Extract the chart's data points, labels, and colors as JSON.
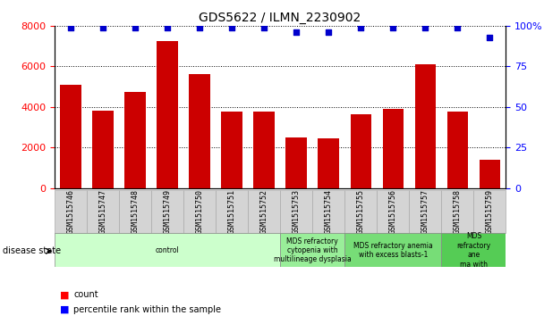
{
  "title": "GDS5622 / ILMN_2230902",
  "samples": [
    "GSM1515746",
    "GSM1515747",
    "GSM1515748",
    "GSM1515749",
    "GSM1515750",
    "GSM1515751",
    "GSM1515752",
    "GSM1515753",
    "GSM1515754",
    "GSM1515755",
    "GSM1515756",
    "GSM1515757",
    "GSM1515758",
    "GSM1515759"
  ],
  "counts": [
    5100,
    3800,
    4750,
    7250,
    5600,
    3750,
    3750,
    2500,
    2450,
    3650,
    3900,
    6100,
    3750,
    1400
  ],
  "percentile_ranks": [
    99,
    99,
    99,
    99,
    99,
    99,
    99,
    96,
    96,
    99,
    99,
    99,
    99,
    93
  ],
  "ylim_left": [
    0,
    8000
  ],
  "ylim_right": [
    0,
    100
  ],
  "yticks_left": [
    0,
    2000,
    4000,
    6000,
    8000
  ],
  "yticks_right": [
    0,
    25,
    50,
    75,
    100
  ],
  "bar_color": "#cc0000",
  "dot_color": "#0000cc",
  "disease_groups": [
    {
      "label": "control",
      "start": 0,
      "end": 7,
      "color": "#ccffcc"
    },
    {
      "label": "MDS refractory\ncytopenia with\nmultilineage dysplasia",
      "start": 7,
      "end": 9,
      "color": "#99ee99"
    },
    {
      "label": "MDS refractory anemia\nwith excess blasts-1",
      "start": 9,
      "end": 12,
      "color": "#77dd77"
    },
    {
      "label": "MDS\nrefractory\nane\nma with",
      "start": 12,
      "end": 14,
      "color": "#55cc55"
    }
  ]
}
